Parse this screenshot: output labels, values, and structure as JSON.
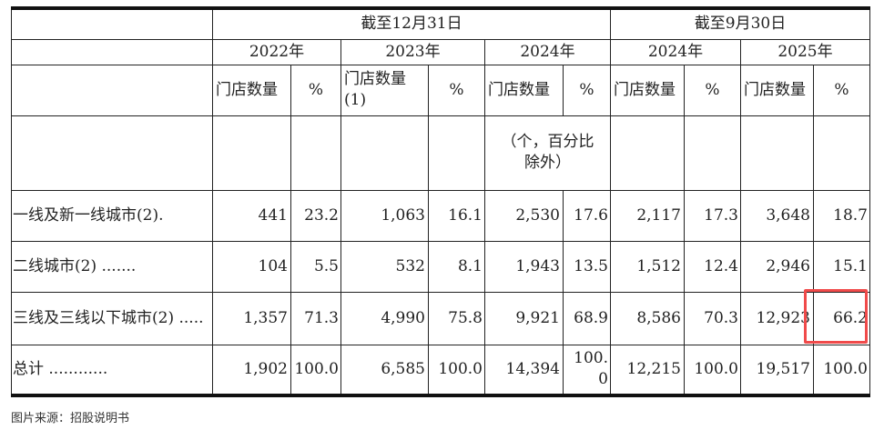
{
  "header": {
    "group_dec": "截至12月31日",
    "group_sep": "截至9月30日",
    "years": [
      "2022年",
      "2023年",
      "2024年",
      "2024年",
      "2025年"
    ],
    "store_count_labels": [
      "门店数量",
      "门店数量(1)",
      "门店数量",
      "门店数量",
      "门店数量"
    ],
    "pct_label": "%",
    "unit_note": "（个，百分比除外）"
  },
  "rows": [
    {
      "label": "一线及新一线城市(2).",
      "values": [
        "441",
        "23.2",
        "1,063",
        "16.1",
        "2,530",
        "17.6",
        "2,117",
        "17.3",
        "3,648",
        "18.7"
      ]
    },
    {
      "label": "二线城市(2) .......",
      "values": [
        "104",
        "5.5",
        "532",
        "8.1",
        "1,943",
        "13.5",
        "1,512",
        "12.4",
        "2,946",
        "15.1"
      ]
    },
    {
      "label": "三线及三线以下城市(2) .....",
      "values": [
        "1,357",
        "71.3",
        "4,990",
        "75.8",
        "9,921",
        "68.9",
        "8,586",
        "70.3",
        "12,923",
        "66.2"
      ]
    },
    {
      "label": "总计 ............",
      "values": [
        "1,902",
        "100.0",
        "6,585",
        "100.0",
        "14,394",
        "100.0",
        "12,215",
        "100.0",
        "19,517",
        "100.0"
      ]
    }
  ],
  "highlight_color": "#f04a4a",
  "source": "图片来源：招股说明书"
}
